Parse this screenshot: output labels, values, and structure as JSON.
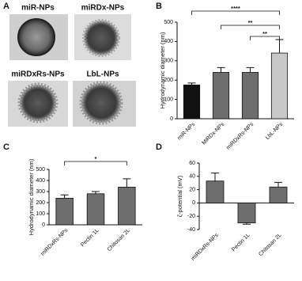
{
  "panel_labels": [
    "A",
    "B",
    "C",
    "D"
  ],
  "images": [
    "miR-NPs",
    "miRDx-NPs",
    "miRDxRs-NPs",
    "LbL-NPs"
  ],
  "chart_data": [
    {
      "type": "bar",
      "ylabel": "Hydrodynamic diameter (nm)",
      "categories": [
        "miR-NPs",
        "MiRDx-NPs",
        "miRDxRs-NPs",
        "LbL-NPs"
      ],
      "values": [
        175,
        240,
        240,
        340
      ],
      "errors": [
        10,
        25,
        25,
        70
      ],
      "colors": [
        "#111111",
        "#6e6e6e",
        "#6e6e6e",
        "#c8c8c8"
      ],
      "ylim": [
        0,
        500
      ],
      "yticks": [
        0,
        100,
        200,
        300,
        400,
        500
      ],
      "annotations": [
        "****",
        "**",
        "**"
      ]
    },
    {
      "type": "bar",
      "ylabel": "Hydrodynamic diameter (nm)",
      "categories": [
        "miRDxRs-NPs",
        "Pectin 1L",
        "Chitosan 2L"
      ],
      "values": [
        240,
        280,
        340
      ],
      "errors": [
        30,
        20,
        75
      ],
      "colors": [
        "#6e6e6e",
        "#6e6e6e",
        "#6e6e6e"
      ],
      "ylim": [
        0,
        500
      ],
      "yticks": [
        0,
        100,
        200,
        300,
        400,
        500
      ],
      "annotations": [
        "*"
      ]
    },
    {
      "type": "bar",
      "ylabel": "ζ-potential (mV)",
      "categories": [
        "miRDxRs-NPs",
        "Pectin 1L",
        "Chitosan 2L"
      ],
      "values": [
        33,
        -30,
        24
      ],
      "errors": [
        12,
        2,
        7
      ],
      "colors": [
        "#6e6e6e",
        "#6e6e6e",
        "#6e6e6e"
      ],
      "ylim": [
        -40,
        60
      ],
      "yticks": [
        -40,
        -20,
        0,
        20,
        40,
        60
      ]
    }
  ]
}
